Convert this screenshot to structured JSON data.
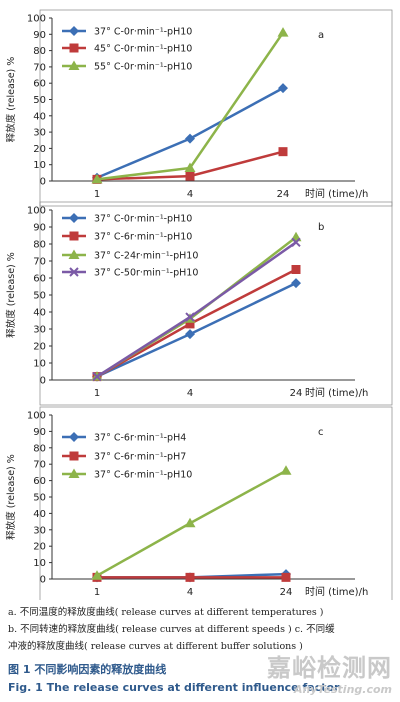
{
  "chart_data": [
    {
      "type": "line",
      "panel_label": "a",
      "ylabel": "释放度 (release) %",
      "xlabel": "时间 (time)/h",
      "categories": [
        "1",
        "4",
        "24"
      ],
      "ylim": [
        0,
        100
      ],
      "yticks": [
        0,
        10,
        20,
        30,
        40,
        50,
        60,
        70,
        80,
        90,
        100
      ],
      "legend_position": "top-left",
      "series": [
        {
          "name": "37° C-0r·min⁻¹-pH10",
          "marker": "diamond",
          "color": "#3c6fb5",
          "values": [
            2,
            26,
            57
          ]
        },
        {
          "name": "45° C-0r·min⁻¹-pH10",
          "marker": "square",
          "color": "#bf3b3b",
          "values": [
            1,
            3,
            18
          ]
        },
        {
          "name": "55° C-0r·min⁻¹-pH10",
          "marker": "triangle",
          "color": "#8db44a",
          "values": [
            1,
            8,
            91
          ]
        }
      ]
    },
    {
      "type": "line",
      "panel_label": "b",
      "ylabel": "释放度 (release) %",
      "xlabel": "时间 (time)/h",
      "categories": [
        "1",
        "4",
        "24"
      ],
      "ylim": [
        0,
        100
      ],
      "yticks": [
        0,
        10,
        20,
        30,
        40,
        50,
        60,
        70,
        80,
        90,
        100
      ],
      "legend_position": "top-left",
      "series": [
        {
          "name": "37° C-0r·min⁻¹-pH10",
          "marker": "diamond",
          "color": "#3c6fb5",
          "values": [
            2,
            27,
            57
          ]
        },
        {
          "name": "37° C-6r·min⁻¹-pH10",
          "marker": "square",
          "color": "#bf3b3b",
          "values": [
            2,
            33,
            65
          ]
        },
        {
          "name": "37° C-24r·min⁻¹-pH10",
          "marker": "triangle",
          "color": "#8db44a",
          "values": [
            2,
            36,
            84
          ]
        },
        {
          "name": "37° C-50r·min⁻¹-pH10",
          "marker": "x",
          "color": "#7b5aa6",
          "values": [
            2,
            37,
            81
          ]
        }
      ]
    },
    {
      "type": "line",
      "panel_label": "c",
      "ylabel": "释放度 (release) %",
      "xlabel": "时间 (time)/h",
      "categories": [
        "1",
        "4",
        "24"
      ],
      "ylim": [
        0,
        100
      ],
      "yticks": [
        0,
        10,
        20,
        30,
        40,
        50,
        60,
        70,
        80,
        90,
        100
      ],
      "legend_position": "top-left",
      "series": [
        {
          "name": "37° C-6r·min⁻¹-pH4",
          "marker": "diamond",
          "color": "#3c6fb5",
          "values": [
            1,
            1,
            3
          ]
        },
        {
          "name": "37° C-6r·min⁻¹-pH7",
          "marker": "square",
          "color": "#bf3b3b",
          "values": [
            1,
            1,
            1
          ]
        },
        {
          "name": "37° C-6r·min⁻¹-pH10",
          "marker": "triangle",
          "color": "#8db44a",
          "values": [
            2,
            34,
            66
          ]
        }
      ]
    }
  ],
  "caption": {
    "line1": "a. 不同温度的释放度曲线( release curves at different temperatures )",
    "line2": "b. 不同转速的释放度曲线( release curves at different speeds )  c. 不同缓",
    "line3": "冲液的释放度曲线( release curves at different buffer solutions )",
    "fig_cn": "图 1   不同影响因素的释放度曲线",
    "fig_en": "Fig. 1    The release curves at different influence factor"
  },
  "watermark": {
    "main": "嘉峪检测网",
    "sub": "AnyTesting.com"
  }
}
